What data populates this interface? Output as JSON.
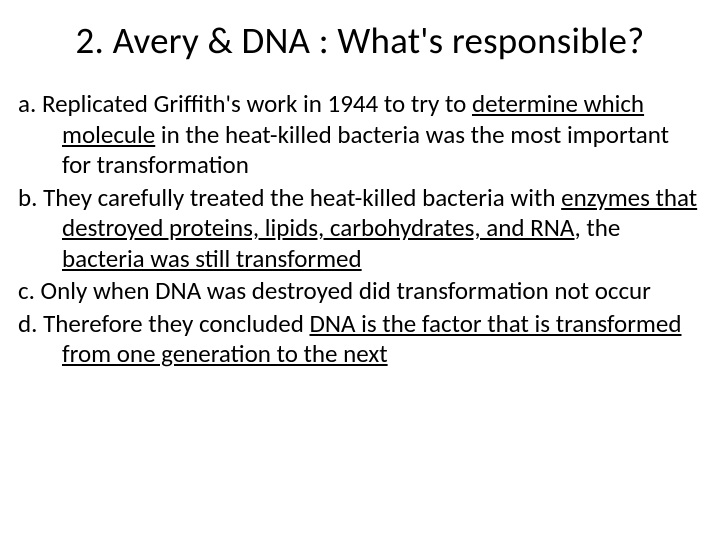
{
  "background_color": "#ffffff",
  "text_color": "#000000",
  "title": {
    "text": "2. Avery & DNA : What's responsible?",
    "fontsize": 37,
    "align": "center"
  },
  "body": {
    "fontsize": 25,
    "items": [
      {
        "label": "a.",
        "segments": [
          {
            "text": "Replicated Griffith's work in 1944 to try to ",
            "u": false
          },
          {
            "text": "determine which molecule",
            "u": true
          },
          {
            "text": " in the heat-killed bacteria was the most important for transformation",
            "u": false
          }
        ]
      },
      {
        "label": "b.",
        "segments": [
          {
            "text": "They carefully treated the heat-killed bacteria with ",
            "u": false
          },
          {
            "text": "enzymes that destroyed proteins, lipids, carbohydrates, and RNA",
            "u": true
          },
          {
            "text": ", the ",
            "u": false
          },
          {
            "text": "bacteria was still transformed",
            "u": true
          }
        ]
      },
      {
        "label": "c.",
        "segments": [
          {
            "text": "Only when DNA was destroyed did transformation not occur",
            "u": false
          }
        ]
      },
      {
        "label": "d.",
        "segments": [
          {
            "text": "Therefore they concluded ",
            "u": false
          },
          {
            "text": "DNA is the factor that is transformed from one generation to the next",
            "u": true
          }
        ]
      }
    ]
  }
}
